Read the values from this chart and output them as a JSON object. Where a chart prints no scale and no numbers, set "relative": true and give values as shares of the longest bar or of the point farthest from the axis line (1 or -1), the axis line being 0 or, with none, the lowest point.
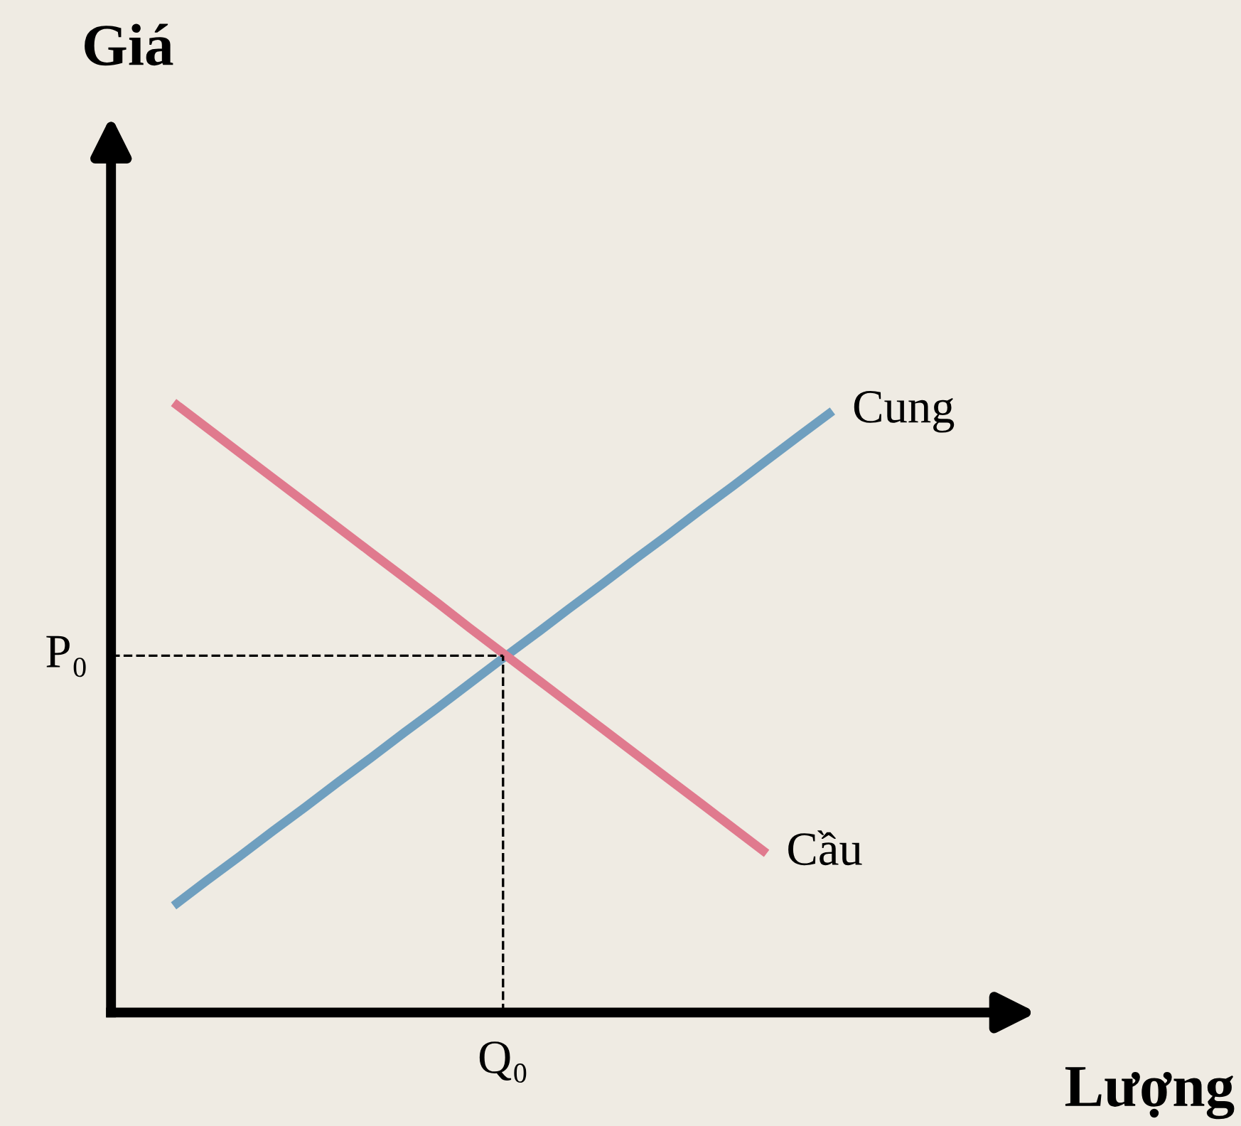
{
  "chart_data": {
    "type": "line",
    "relative": true,
    "xlabel": "Lượng",
    "categories": [
      null,
      null,
      null,
      null,
      null,
      null,
      null,
      null,
      null,
      null,
      null,
      null,
      null,
      null,
      null,
      null,
      null,
      null,
      null,
      null,
      null
    ],
    "series": [
      {
        "name": "Cung",
        "color": "#6f9fbf",
        "values": [
          0.175,
          0.216,
          0.256,
          0.297,
          0.337,
          0.378,
          0.418,
          0.459,
          0.499,
          0.54,
          0.581,
          0.621,
          0.662,
          0.702,
          0.743,
          0.783,
          0.824,
          0.864,
          0.905,
          0.946,
          0.986
        ]
      },
      {
        "name": "Cầu",
        "color": "#e07a8e",
        "values": [
          1.0,
          0.959,
          0.918,
          0.877,
          0.836,
          0.795,
          0.754,
          0.713,
          0.672,
          0.63,
          0.589,
          0.548,
          0.507,
          0.466,
          0.425,
          0.384,
          0.343,
          0.302,
          0.261,
          null,
          null
        ]
      }
    ],
    "ref_lines": [
      {
        "axis": "y",
        "value": 0.585,
        "label": "P₀",
        "color": "#000000",
        "line_style": "dashed"
      }
    ],
    "annotations": [
      "Q₀",
      "Giá"
    ],
    "legend": false,
    "marker": "none",
    "line_style": "solid"
  }
}
